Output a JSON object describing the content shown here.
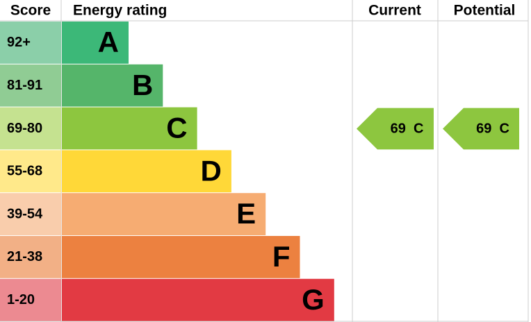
{
  "header": {
    "score": "Score",
    "rating": "Energy rating",
    "current": "Current",
    "potential": "Potential"
  },
  "bands": [
    {
      "score": "92+",
      "letter": "A",
      "color": "#3cb878",
      "light": "#8bcfa9"
    },
    {
      "score": "81-91",
      "letter": "B",
      "color": "#55b56a",
      "light": "#90cc94"
    },
    {
      "score": "69-80",
      "letter": "C",
      "color": "#8dc63f",
      "light": "#c5e290"
    },
    {
      "score": "55-68",
      "letter": "D",
      "color": "#ffd838",
      "light": "#ffe98a"
    },
    {
      "score": "39-54",
      "letter": "E",
      "color": "#f6ac72",
      "light": "#f9cdac"
    },
    {
      "score": "21-38",
      "letter": "F",
      "color": "#ec8140",
      "light": "#f2b086"
    },
    {
      "score": "1-20",
      "letter": "G",
      "color": "#e23a43",
      "light": "#ec8a91"
    }
  ],
  "current": {
    "score": 69,
    "band": "C"
  },
  "potential": {
    "score": 69,
    "band": "C"
  }
}
